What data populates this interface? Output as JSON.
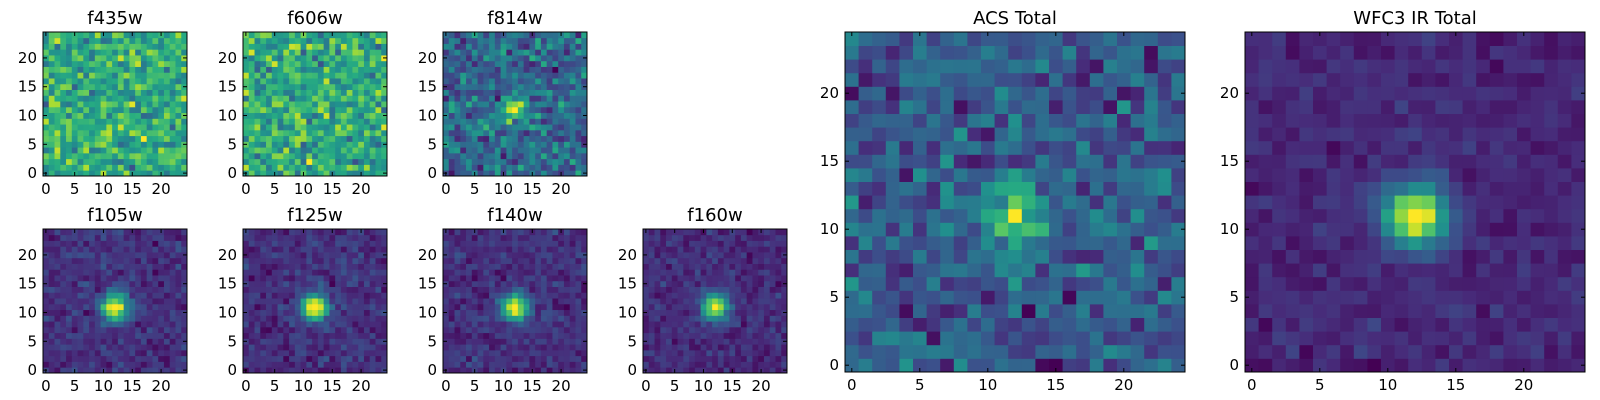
{
  "chart_data": [
    {
      "type": "heatmap",
      "title": "f435w",
      "ylim": [
        0,
        24
      ],
      "xlim": [
        0,
        24
      ],
      "xticks": [
        "0",
        "5",
        "10",
        "15",
        "20"
      ],
      "yticks": [
        "0",
        "5",
        "10",
        "15",
        "20"
      ],
      "colormap": "viridis",
      "source_position": null,
      "noise": 0.9,
      "blob_amp": 0.0,
      "seed": 11
    },
    {
      "type": "heatmap",
      "title": "f606w",
      "ylim": [
        0,
        24
      ],
      "xlim": [
        0,
        24
      ],
      "xticks": [
        "0",
        "5",
        "10",
        "15",
        "20"
      ],
      "yticks": [
        "0",
        "5",
        "10",
        "15",
        "20"
      ],
      "colormap": "viridis",
      "source_position": null,
      "noise": 0.9,
      "blob_amp": 0.0,
      "seed": 23
    },
    {
      "type": "heatmap",
      "title": "f814w",
      "ylim": [
        0,
        24
      ],
      "xlim": [
        0,
        24
      ],
      "xticks": [
        "0",
        "5",
        "10",
        "15",
        "20"
      ],
      "yticks": [
        "0",
        "5",
        "10",
        "15",
        "20"
      ],
      "colormap": "viridis",
      "source_position": [
        12,
        11
      ],
      "noise": 0.85,
      "blob_amp": 0.5,
      "seed": 37
    },
    {
      "type": "heatmap",
      "title": "f105w",
      "ylim": [
        0,
        24
      ],
      "xlim": [
        0,
        24
      ],
      "xticks": [
        "0",
        "5",
        "10",
        "15",
        "20"
      ],
      "yticks": [
        "0",
        "5",
        "10",
        "15",
        "20"
      ],
      "colormap": "viridis",
      "source_position": [
        12,
        11
      ],
      "noise": 0.35,
      "blob_amp": 1.0,
      "seed": 41
    },
    {
      "type": "heatmap",
      "title": "f125w",
      "ylim": [
        0,
        24
      ],
      "xlim": [
        0,
        24
      ],
      "xticks": [
        "0",
        "5",
        "10",
        "15",
        "20"
      ],
      "yticks": [
        "0",
        "5",
        "10",
        "15",
        "20"
      ],
      "colormap": "viridis",
      "source_position": [
        12,
        11
      ],
      "noise": 0.35,
      "blob_amp": 1.0,
      "seed": 53
    },
    {
      "type": "heatmap",
      "title": "f140w",
      "ylim": [
        0,
        24
      ],
      "xlim": [
        0,
        24
      ],
      "xticks": [
        "0",
        "5",
        "10",
        "15",
        "20"
      ],
      "yticks": [
        "0",
        "5",
        "10",
        "15",
        "20"
      ],
      "colormap": "viridis",
      "source_position": [
        12,
        11
      ],
      "noise": 0.35,
      "blob_amp": 1.0,
      "seed": 67
    },
    {
      "type": "heatmap",
      "title": "f160w",
      "ylim": [
        0,
        24
      ],
      "xlim": [
        0,
        24
      ],
      "xticks": [
        "0",
        "5",
        "10",
        "15",
        "20"
      ],
      "yticks": [
        "0",
        "5",
        "10",
        "15",
        "20"
      ],
      "colormap": "viridis",
      "source_position": [
        12,
        11
      ],
      "noise": 0.35,
      "blob_amp": 1.0,
      "seed": 79
    },
    {
      "type": "heatmap",
      "title": "ACS Total",
      "ylim": [
        0,
        24
      ],
      "xlim": [
        0,
        24
      ],
      "xticks": [
        "0",
        "5",
        "10",
        "15",
        "20"
      ],
      "yticks": [
        "0",
        "5",
        "10",
        "15",
        "20"
      ],
      "colormap": "viridis",
      "source_position": [
        12,
        11
      ],
      "noise": 0.8,
      "blob_amp": 0.6,
      "seed": 83
    },
    {
      "type": "heatmap",
      "title": "WFC3 IR Total",
      "ylim": [
        0,
        24
      ],
      "xlim": [
        0,
        24
      ],
      "xticks": [
        "0",
        "5",
        "10",
        "15",
        "20"
      ],
      "yticks": [
        "0",
        "5",
        "10",
        "15",
        "20"
      ],
      "colormap": "viridis",
      "source_position": [
        12,
        11
      ],
      "noise": 0.3,
      "blob_amp": 1.2,
      "seed": 97
    }
  ]
}
